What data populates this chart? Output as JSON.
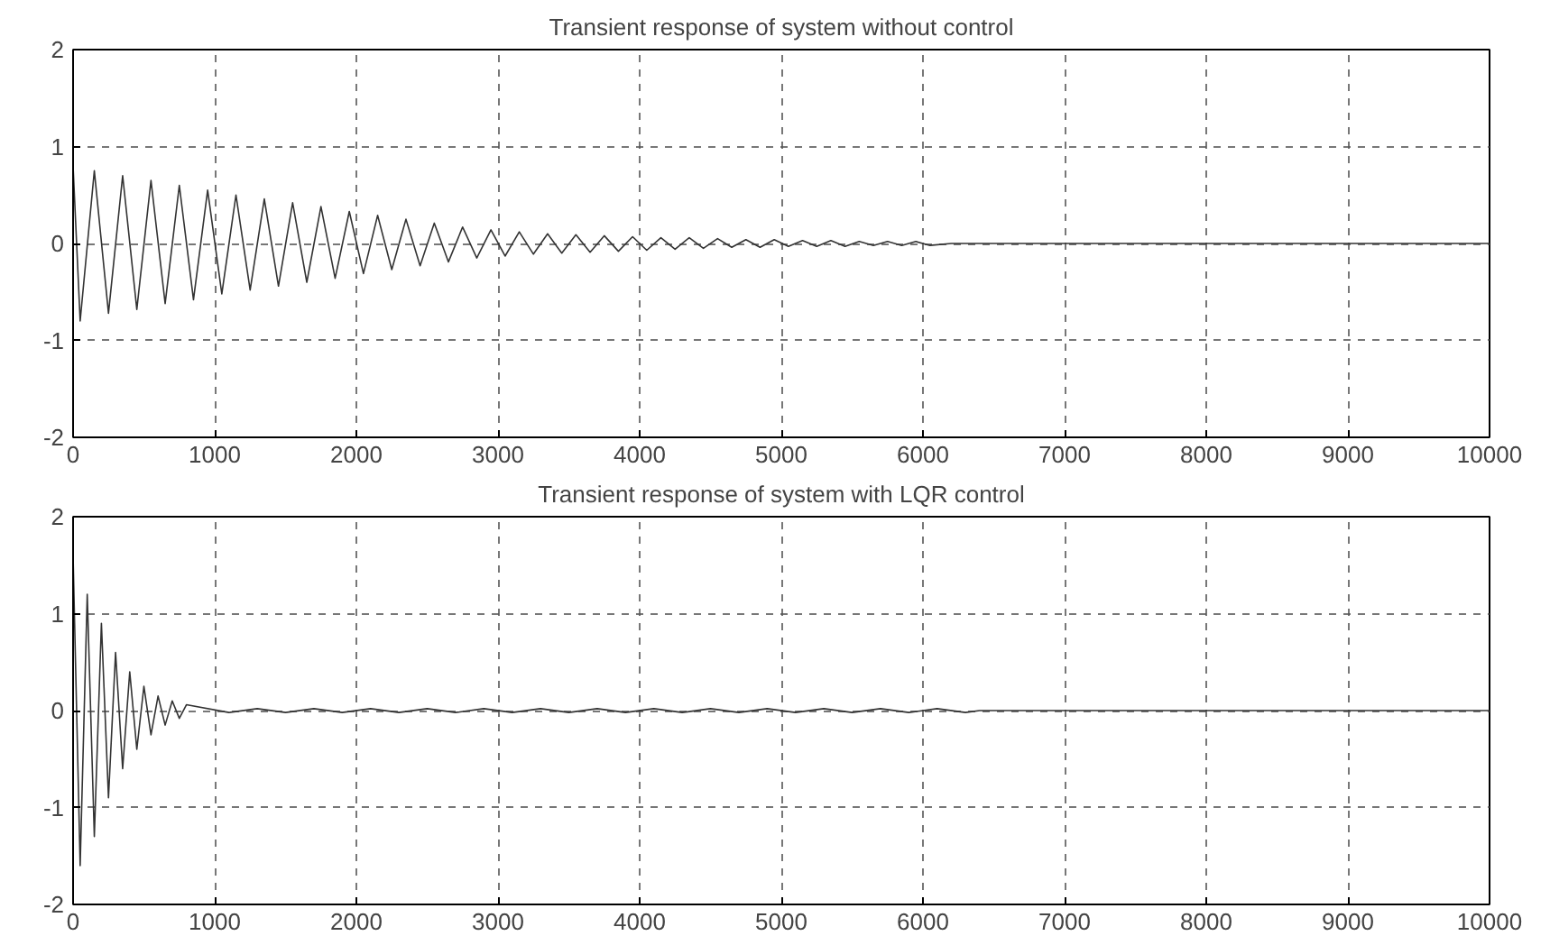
{
  "chart_data": [
    {
      "type": "line",
      "title": "Transient response of system without control",
      "xlim": [
        0,
        10000
      ],
      "ylim": [
        -2,
        2
      ],
      "xticks": [
        0,
        1000,
        2000,
        3000,
        4000,
        5000,
        6000,
        7000,
        8000,
        9000,
        10000
      ],
      "yticks": [
        -2,
        -1,
        0,
        1,
        2
      ],
      "grid": true,
      "line_style": "solid",
      "marker": "none",
      "series": [
        {
          "color": "#333333",
          "x": [
            0,
            50,
            150,
            250,
            350,
            450,
            550,
            650,
            750,
            850,
            950,
            1050,
            1150,
            1250,
            1350,
            1450,
            1550,
            1650,
            1750,
            1850,
            1950,
            2050,
            2150,
            2250,
            2350,
            2450,
            2550,
            2650,
            2750,
            2850,
            2950,
            3050,
            3150,
            3250,
            3350,
            3450,
            3550,
            3650,
            3750,
            3850,
            3950,
            4050,
            4150,
            4250,
            4350,
            4450,
            4550,
            4650,
            4750,
            4850,
            4950,
            5050,
            5150,
            5250,
            5350,
            5450,
            5550,
            5650,
            5750,
            5850,
            5950,
            6050,
            6200,
            10000
          ],
          "values": [
            0.8,
            -0.8,
            0.75,
            -0.72,
            0.7,
            -0.68,
            0.65,
            -0.62,
            0.6,
            -0.58,
            0.55,
            -0.52,
            0.5,
            -0.48,
            0.46,
            -0.44,
            0.42,
            -0.4,
            0.38,
            -0.36,
            0.33,
            -0.31,
            0.29,
            -0.27,
            0.25,
            -0.23,
            0.21,
            -0.19,
            0.17,
            -0.15,
            0.14,
            -0.13,
            0.12,
            -0.11,
            0.1,
            -0.1,
            0.09,
            -0.09,
            0.08,
            -0.08,
            0.07,
            -0.07,
            0.06,
            -0.06,
            0.06,
            -0.05,
            0.05,
            -0.04,
            0.04,
            -0.04,
            0.04,
            -0.03,
            0.03,
            -0.03,
            0.03,
            -0.03,
            0.02,
            -0.02,
            0.02,
            -0.02,
            0.02,
            -0.02,
            0,
            0
          ]
        }
      ]
    },
    {
      "type": "line",
      "title": "Transient response of system with LQR control",
      "xlim": [
        0,
        10000
      ],
      "ylim": [
        -2,
        2
      ],
      "xticks": [
        0,
        1000,
        2000,
        3000,
        4000,
        5000,
        6000,
        7000,
        8000,
        9000,
        10000
      ],
      "yticks": [
        -2,
        -1,
        0,
        1,
        2
      ],
      "grid": true,
      "line_style": "solid",
      "marker": "none",
      "series": [
        {
          "color": "#333333",
          "x": [
            0,
            50,
            100,
            150,
            200,
            250,
            300,
            350,
            400,
            450,
            500,
            550,
            600,
            650,
            700,
            750,
            800,
            1100,
            1300,
            1500,
            1700,
            1900,
            2100,
            2300,
            2500,
            2700,
            2900,
            3100,
            3300,
            3500,
            3700,
            3900,
            4100,
            4300,
            4500,
            4700,
            4900,
            5100,
            5300,
            5500,
            5700,
            5900,
            6100,
            6300,
            6400,
            10000
          ],
          "values": [
            1.6,
            -1.6,
            1.2,
            -1.3,
            0.9,
            -0.9,
            0.6,
            -0.6,
            0.4,
            -0.4,
            0.25,
            -0.25,
            0.15,
            -0.15,
            0.1,
            -0.08,
            0.06,
            -0.02,
            0.02,
            -0.02,
            0.02,
            -0.02,
            0.02,
            -0.02,
            0.02,
            -0.02,
            0.02,
            -0.02,
            0.02,
            -0.02,
            0.02,
            -0.02,
            0.02,
            -0.02,
            0.02,
            -0.02,
            0.02,
            -0.02,
            0.02,
            -0.02,
            0.02,
            -0.02,
            0.02,
            -0.02,
            0,
            0
          ]
        }
      ]
    }
  ]
}
